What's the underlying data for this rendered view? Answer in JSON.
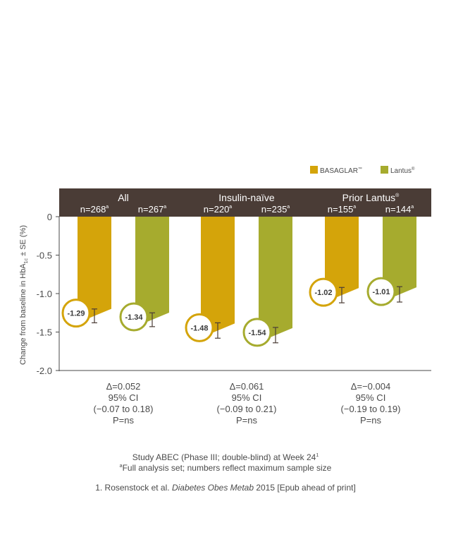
{
  "chart_data": {
    "type": "bar",
    "ylabel": "Change from baseline in HbA1c ± SE (%)",
    "ylabel_parts": {
      "before": "Change from baseline in HbA",
      "sub": "1c",
      "after": " ± SE (%)"
    },
    "ylim": [
      -2.0,
      0
    ],
    "yticks": [
      0,
      -0.5,
      -1.0,
      -1.5,
      -2.0
    ],
    "ytick_labels": [
      "0",
      "-0.5",
      "-1.0",
      "-1.5",
      "-2.0"
    ],
    "grid": false,
    "legend_position": "top-right",
    "legend": [
      {
        "name": "BASAGLAR",
        "mark": "™",
        "color": "#d4a40a"
      },
      {
        "name": "Lantus",
        "mark": "®",
        "color": "#a6ab2e"
      }
    ],
    "groups": [
      {
        "label": "All",
        "label_mark": "",
        "bars": [
          {
            "series": "BASAGLAR",
            "n": "n=268",
            "n_mark": "a",
            "value": -1.29,
            "value_label": "-1.29",
            "se": 0.09
          },
          {
            "series": "Lantus",
            "n": "n=267",
            "n_mark": "a",
            "value": -1.34,
            "value_label": "-1.34",
            "se": 0.09
          }
        ],
        "stats": [
          "Δ=0.052",
          "95% CI",
          "(−0.07 to 0.18)",
          "P=ns"
        ]
      },
      {
        "label": "Insulin-naïve",
        "label_mark": "",
        "bars": [
          {
            "series": "BASAGLAR",
            "n": "n=220",
            "n_mark": "a",
            "value": -1.48,
            "value_label": "-1.48",
            "se": 0.1
          },
          {
            "series": "Lantus",
            "n": "n=235",
            "n_mark": "a",
            "value": -1.54,
            "value_label": "-1.54",
            "se": 0.1
          }
        ],
        "stats": [
          "Δ=0.061",
          "95% CI",
          "(−0.09 to 0.21)",
          "P=ns"
        ]
      },
      {
        "label": "Prior Lantus",
        "label_mark": "®",
        "bars": [
          {
            "series": "BASAGLAR",
            "n": "n=155",
            "n_mark": "a",
            "value": -1.02,
            "value_label": "-1.02",
            "se": 0.1
          },
          {
            "series": "Lantus",
            "n": "n=144",
            "n_mark": "a",
            "value": -1.01,
            "value_label": "-1.01",
            "se": 0.1
          }
        ],
        "stats": [
          "Δ=−0.004",
          "95% CI",
          "(−0.19 to 0.19)",
          "P=ns"
        ]
      }
    ]
  },
  "footer": {
    "study": "Study ABEC (Phase III; double-blind) at Week 24",
    "study_mark": "1",
    "fas_mark": "a",
    "fas": "Full analysis set; numbers reflect maximum sample size",
    "ref_before": "1. Rosenstock et al. ",
    "ref_journal": "Diabetes Obes Metab",
    "ref_after": " 2015 [Epub ahead of print]"
  }
}
